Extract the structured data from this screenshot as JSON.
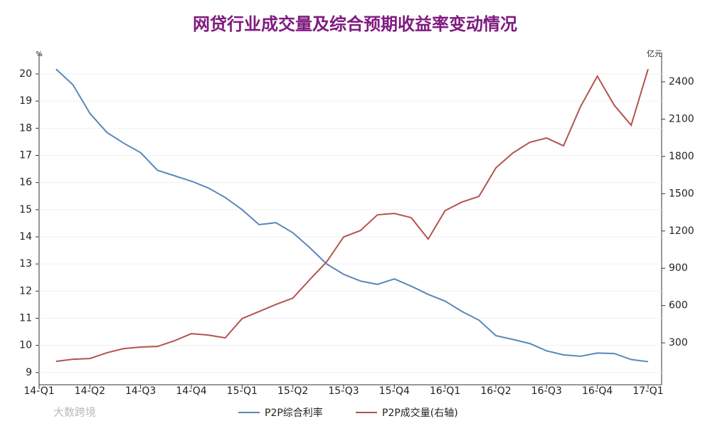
{
  "chart_data": {
    "type": "line",
    "title": "网贷行业成交量及综合预期收益率变动情况",
    "y_unit": "%",
    "y2_unit": "亿元",
    "watermark": "大数跨境",
    "x": [
      1,
      2,
      3,
      4,
      5,
      6,
      7,
      8,
      9,
      10,
      11,
      12,
      13,
      14,
      15,
      16,
      17,
      18,
      19,
      20,
      21,
      22,
      23,
      24,
      25,
      26,
      27,
      28,
      29,
      30,
      31,
      32,
      33,
      34,
      35,
      36
    ],
    "xlim": [
      0,
      36.8
    ],
    "xticks": [
      {
        "value": 0,
        "label": "14-Q1"
      },
      {
        "value": 3,
        "label": "14-Q2"
      },
      {
        "value": 6,
        "label": "14-Q3"
      },
      {
        "value": 9,
        "label": "14-Q4"
      },
      {
        "value": 12,
        "label": "15-Q1"
      },
      {
        "value": 15,
        "label": "15-Q2"
      },
      {
        "value": 18,
        "label": "15-Q3"
      },
      {
        "value": 21,
        "label": "15-Q4"
      },
      {
        "value": 24,
        "label": "16-Q1"
      },
      {
        "value": 27,
        "label": "16-Q2"
      },
      {
        "value": 30,
        "label": "16-Q3"
      },
      {
        "value": 33,
        "label": "16-Q4"
      },
      {
        "value": 36,
        "label": "17-Q1"
      }
    ],
    "ylim": [
      8.55,
      20.76
    ],
    "yticks": [
      9,
      10,
      11,
      12,
      13,
      14,
      15,
      16,
      17,
      18,
      19,
      20
    ],
    "y2lim": [
      -37,
      2629
    ],
    "y2ticks": [
      300,
      600,
      900,
      1200,
      1500,
      1800,
      2100,
      2400
    ],
    "series": [
      {
        "name": "P2P综合利率",
        "color": "#5b87bb",
        "values": [
          20.18,
          19.6,
          18.55,
          17.85,
          17.45,
          17.1,
          16.45,
          16.25,
          16.05,
          15.8,
          15.45,
          15.0,
          14.45,
          14.52,
          14.15,
          13.6,
          13.0,
          12.62,
          12.37,
          12.25,
          12.45,
          12.18,
          11.88,
          11.63,
          11.25,
          10.93,
          10.36,
          10.22,
          10.07,
          9.8,
          9.65,
          9.6,
          9.72,
          9.7,
          9.48,
          9.4
        ]
      },
      {
        "name": "P2P成交量(右轴)",
        "color": "#b5524f",
        "axis": "y2",
        "values": [
          151,
          168,
          174,
          220,
          254,
          266,
          271,
          317,
          374,
          363,
          340,
          495,
          552,
          609,
          660,
          809,
          952,
          1152,
          1204,
          1330,
          1341,
          1307,
          1135,
          1364,
          1433,
          1478,
          1707,
          1827,
          1913,
          1948,
          1885,
          2199,
          2445,
          2211,
          2051,
          2502
        ]
      }
    ]
  }
}
